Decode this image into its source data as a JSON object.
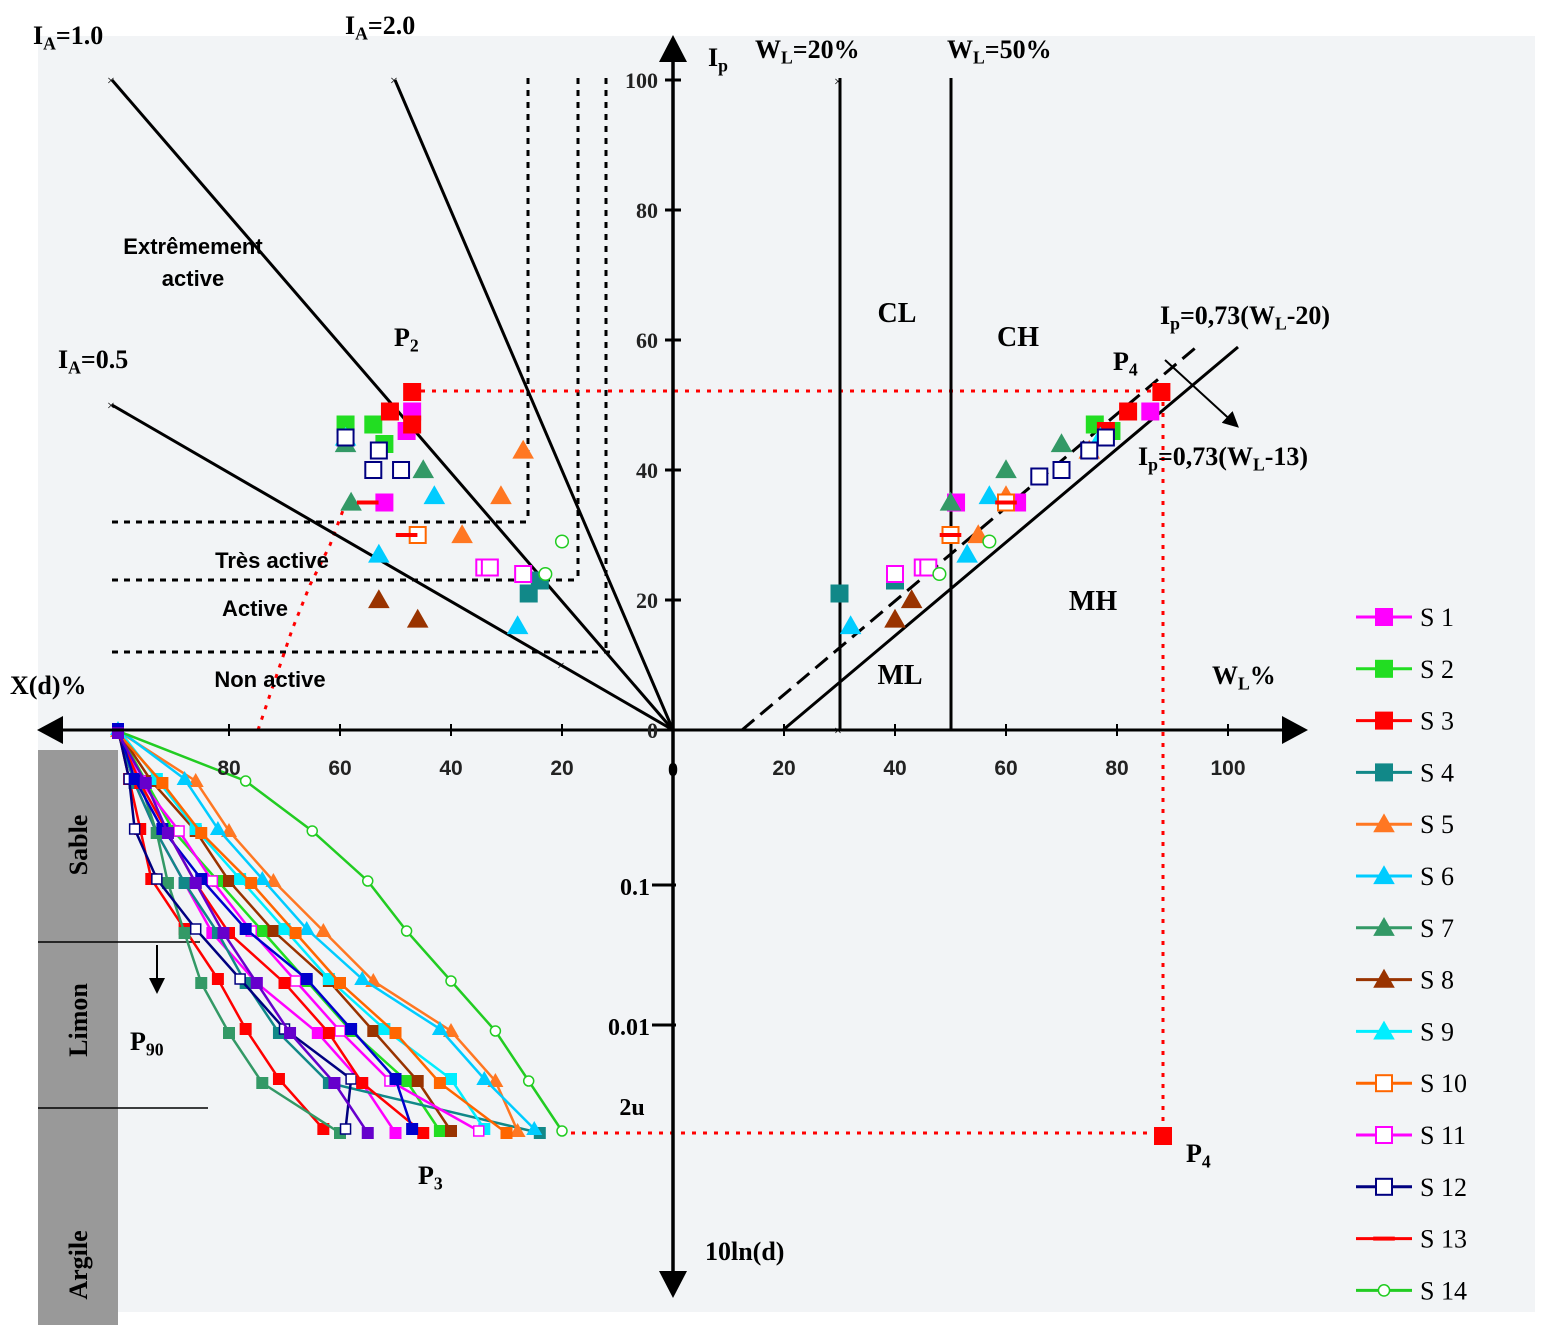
{
  "chart_data": {
    "type": "scatter",
    "axes": {
      "ip_label": "Ip",
      "wl_label": "WL%",
      "xd_label": "X(d)%",
      "lnd_label": "10ln(d)",
      "ip_ticks": [
        "100",
        "80",
        "60",
        "40",
        "20",
        "0"
      ],
      "wl_ticks": [
        "20",
        "40",
        "60",
        "80",
        "100"
      ],
      "xd_ticks": [
        "80",
        "60",
        "40",
        "20"
      ],
      "ln_ticks": [
        "0.1",
        "0.01",
        "2u"
      ],
      "wl_range": [
        0,
        100
      ],
      "ip_range": [
        0,
        100
      ],
      "xd_range": [
        0,
        100
      ]
    },
    "activity_lines": [
      {
        "label": "IA=1.0",
        "main": "I",
        "sub": "A",
        "rest": "=1.0",
        "slope": 1.0
      },
      {
        "label": "IA=2.0",
        "main": "I",
        "sub": "A",
        "rest": "=2.0",
        "slope": 2.0
      },
      {
        "label": "IA=0.5",
        "main": "I",
        "sub": "A",
        "rest": "=0.5",
        "slope": 0.5
      }
    ],
    "wl_lines": [
      {
        "label": "WL=20%",
        "main": "W",
        "sub": "L",
        "rest": "=20%"
      },
      {
        "label": "WL=50%",
        "main": "W",
        "sub": "L",
        "rest": "=50%"
      }
    ],
    "a_line": {
      "main": "I",
      "sub": "p",
      "rest": "=0,73(W",
      "sub2": "L",
      "rest2": "-20)"
    },
    "u_line": {
      "main": "I",
      "sub": "p",
      "rest": "=0,73(W",
      "sub2": "L",
      "rest2": "-13)"
    },
    "zones": [
      "CL",
      "CH",
      "ML",
      "MH"
    ],
    "activity_zones": [
      "Extrêmement",
      "active",
      "Très active",
      "Active",
      "Non active"
    ],
    "soil_classes": [
      "Sable",
      "Limon",
      "Argile"
    ],
    "points": {
      "P2": {
        "main": "P",
        "sub": "2"
      },
      "P3": {
        "main": "P",
        "sub": "3"
      },
      "P4": {
        "main": "P",
        "sub": "4"
      },
      "P90": {
        "main": "P",
        "sub": "90"
      }
    },
    "series": [
      {
        "name": "S 1",
        "color": "#ff00ff",
        "marker": "square-filled",
        "plasticity": [
          [
            51,
            35
          ],
          [
            62,
            35
          ],
          [
            86,
            49
          ]
        ],
        "activity": [
          [
            52,
            35
          ],
          [
            48,
            46
          ],
          [
            47,
            49
          ]
        ]
      },
      {
        "name": "S 2",
        "color": "#22dd22",
        "marker": "square-filled",
        "plasticity": [
          [
            76,
            47
          ],
          [
            79,
            46
          ]
        ],
        "activity": [
          [
            59,
            47
          ],
          [
            54,
            47
          ],
          [
            52,
            44
          ]
        ]
      },
      {
        "name": "S 3",
        "color": "#ff0000",
        "marker": "square-filled",
        "plasticity": [
          [
            78,
            46
          ],
          [
            82,
            49
          ],
          [
            88,
            52
          ]
        ],
        "activity": [
          [
            47,
            52
          ],
          [
            51,
            49
          ],
          [
            47,
            47
          ]
        ]
      },
      {
        "name": "S 4",
        "color": "#118888",
        "marker": "square-filled",
        "plasticity": [
          [
            30,
            21
          ],
          [
            40,
            23
          ]
        ],
        "activity": [
          [
            26,
            21
          ],
          [
            24,
            23
          ]
        ]
      },
      {
        "name": "S 5",
        "color": "#ff7722",
        "marker": "triangle-filled",
        "plasticity": [
          [
            55,
            30
          ],
          [
            60,
            36
          ],
          [
            75,
            43
          ]
        ],
        "activity": [
          [
            27,
            43
          ],
          [
            31,
            36
          ],
          [
            38,
            30
          ]
        ]
      },
      {
        "name": "S 6",
        "color": "#00ccff",
        "marker": "triangle-filled",
        "plasticity": [
          [
            53,
            27
          ],
          [
            57,
            36
          ],
          [
            32,
            16
          ]
        ],
        "activity": [
          [
            53,
            27
          ],
          [
            43,
            36
          ],
          [
            28,
            16
          ]
        ]
      },
      {
        "name": "S 7",
        "color": "#339966",
        "marker": "triangle-filled",
        "plasticity": [
          [
            50,
            35
          ],
          [
            60,
            40
          ],
          [
            70,
            44
          ]
        ],
        "activity": [
          [
            59,
            44
          ],
          [
            58,
            35
          ],
          [
            45,
            40
          ]
        ]
      },
      {
        "name": "S 8",
        "color": "#993300",
        "marker": "triangle-filled",
        "plasticity": [
          [
            40,
            17
          ],
          [
            43,
            20
          ]
        ],
        "activity": [
          [
            53,
            20
          ],
          [
            46,
            17
          ]
        ]
      },
      {
        "name": "S 9",
        "color": "#00eeff",
        "marker": "triangle-filled",
        "plasticity": [
          [
            77,
            45
          ]
        ],
        "activity": [
          [
            59,
            45
          ]
        ]
      },
      {
        "name": "S 10",
        "color": "#ff6600",
        "marker": "square-open",
        "plasticity": [
          [
            50,
            30
          ],
          [
            60,
            35
          ]
        ],
        "activity": [
          [
            46,
            30
          ]
        ]
      },
      {
        "name": "S 11",
        "color": "#ff00ff",
        "marker": "square-open",
        "plasticity": [
          [
            40,
            24
          ],
          [
            45,
            25
          ],
          [
            46,
            25
          ]
        ],
        "activity": [
          [
            34,
            25
          ],
          [
            33,
            25
          ],
          [
            27,
            24
          ]
        ]
      },
      {
        "name": "S 12",
        "color": "#000080",
        "marker": "square-open",
        "plasticity": [
          [
            66,
            39
          ],
          [
            70,
            40
          ],
          [
            75,
            43
          ],
          [
            78,
            45
          ]
        ],
        "activity": [
          [
            54,
            40
          ],
          [
            49,
            40
          ],
          [
            53,
            43
          ],
          [
            59,
            45
          ]
        ]
      },
      {
        "name": "S 13",
        "color": "#ff0000",
        "marker": "dash",
        "plasticity": [
          [
            50,
            30
          ],
          [
            60,
            35
          ]
        ],
        "activity": [
          [
            48,
            30
          ],
          [
            55,
            35
          ]
        ]
      },
      {
        "name": "S 14",
        "color": "#22cc22",
        "marker": "circle-open",
        "plasticity": [
          [
            48,
            24
          ],
          [
            57,
            29
          ]
        ],
        "activity": [
          [
            23,
            24
          ],
          [
            20,
            29
          ]
        ]
      }
    ],
    "gradation": {
      "levels": [
        0,
        1,
        2,
        3,
        4,
        5,
        6,
        7,
        8
      ],
      "curves": [
        {
          "color": "#ff00ff",
          "values": [
            100,
            97,
            93,
            88,
            83,
            75,
            64,
            56,
            50
          ]
        },
        {
          "color": "#22dd22",
          "values": [
            100,
            95,
            90,
            82,
            74,
            66,
            58,
            48,
            42
          ]
        },
        {
          "color": "#ff0000",
          "values": [
            100,
            98,
            96,
            94,
            88,
            82,
            77,
            71,
            63
          ]
        },
        {
          "color": "#118888",
          "values": [
            100,
            97,
            93,
            88,
            82,
            77,
            71,
            62,
            24
          ]
        },
        {
          "color": "#ff7722",
          "values": [
            100,
            86,
            80,
            72,
            63,
            54,
            40,
            32,
            28
          ]
        },
        {
          "color": "#00ccff",
          "values": [
            100,
            88,
            82,
            74,
            66,
            56,
            42,
            34,
            25
          ]
        },
        {
          "color": "#339966",
          "values": [
            100,
            96,
            93,
            91,
            88,
            85,
            80,
            74,
            60
          ]
        },
        {
          "color": "#993300",
          "values": [
            100,
            94,
            86,
            80,
            72,
            62,
            54,
            46,
            40
          ]
        },
        {
          "color": "#00eeff",
          "values": [
            100,
            93,
            86,
            78,
            70,
            62,
            52,
            40,
            34
          ]
        },
        {
          "color": "#ff6600",
          "values": [
            100,
            92,
            85,
            76,
            68,
            60,
            50,
            42,
            30
          ]
        },
        {
          "color": "#ff00ff",
          "values": [
            100,
            96,
            89,
            83,
            76,
            68,
            60,
            51,
            35
          ]
        },
        {
          "color": "#000080",
          "values": [
            100,
            98,
            97,
            93,
            86,
            78,
            70,
            58,
            59
          ]
        },
        {
          "color": "#ff0000",
          "values": [
            100,
            96,
            91,
            86,
            80,
            70,
            62,
            56,
            45
          ]
        },
        {
          "color": "#22cc22",
          "values": [
            100,
            77,
            65,
            55,
            48,
            40,
            32,
            26,
            20
          ]
        },
        {
          "color": "#0000cc",
          "values": [
            100,
            97,
            92,
            85,
            77,
            66,
            58,
            50,
            47
          ]
        },
        {
          "color": "#6600cc",
          "values": [
            100,
            95,
            91,
            86,
            81,
            75,
            69,
            61,
            55
          ]
        }
      ]
    }
  }
}
